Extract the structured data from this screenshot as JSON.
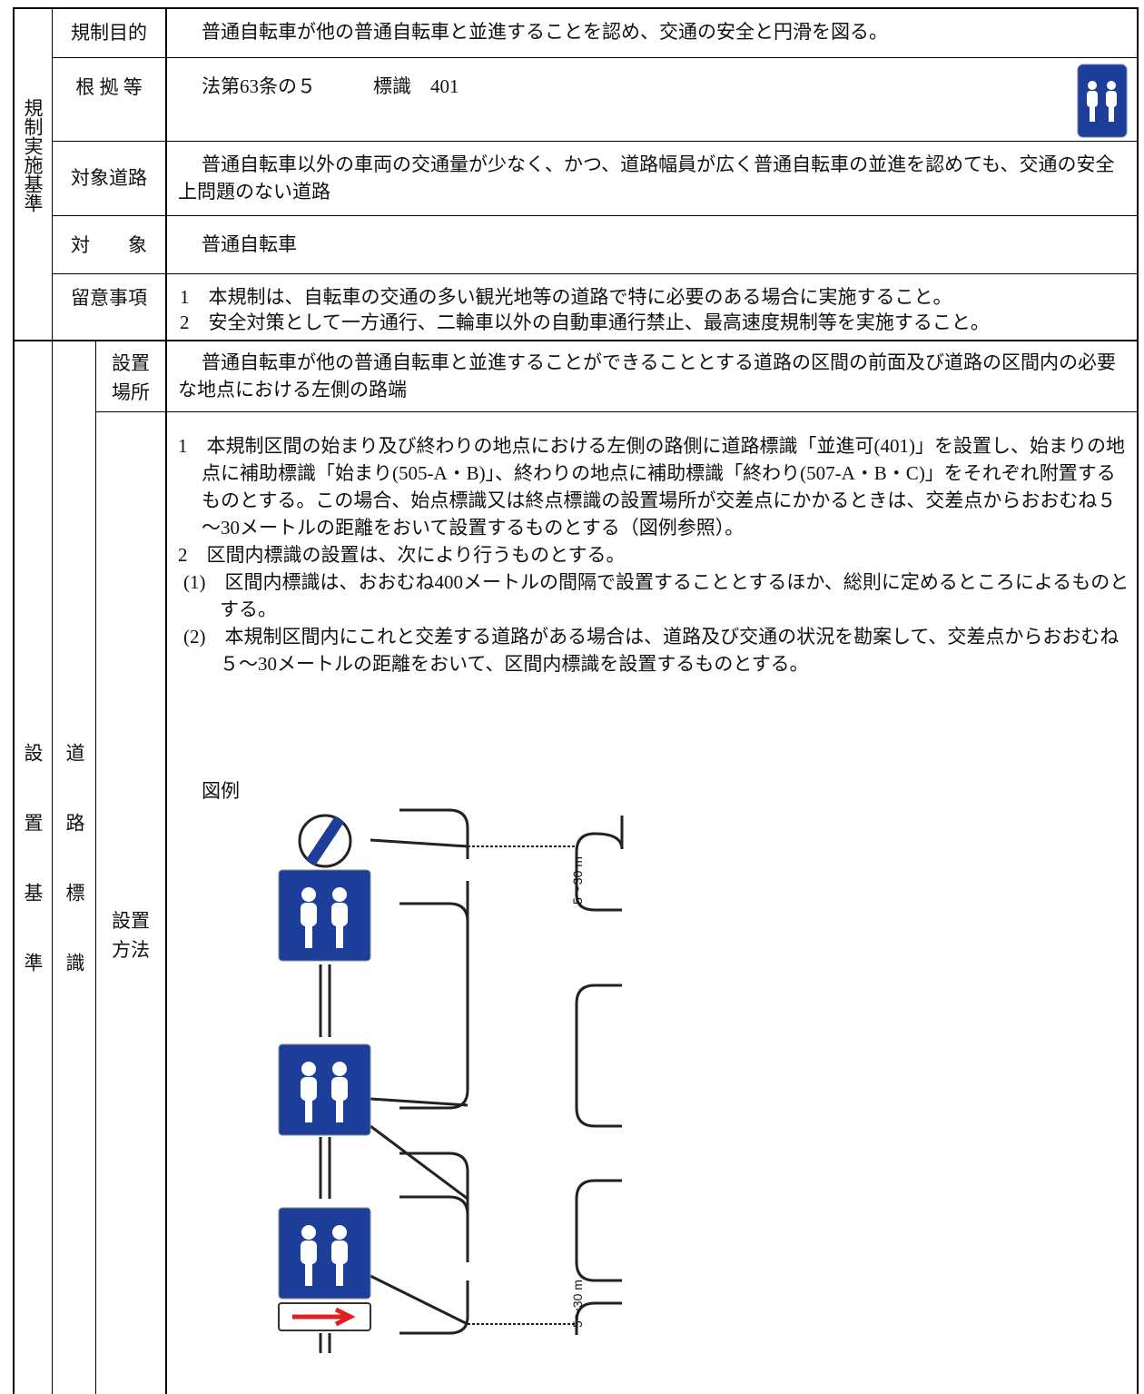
{
  "regulation_section": {
    "label": "規制実施基準",
    "rows": [
      {
        "label": "規制目的",
        "content": "普通自転車が他の普通自転車と並進することを認め、交通の安全と円滑を図る。"
      },
      {
        "label": "根 拠 等",
        "content": "法第63条の５　　　標識　401"
      },
      {
        "label": "対象道路",
        "content": "普通自転車以外の車両の交通量が少なく、かつ、道路幅員が広く普通自転車の並進を認めても、交通の安全上問題のない道路"
      },
      {
        "label": "対　　象",
        "content": "普通自転車"
      },
      {
        "label": "留意事項",
        "items": [
          "1　本規制は、自転車の交通の多い観光地等の道路で特に必要のある場合に実施すること。",
          "2　安全対策として一方通行、二輪車以外の自動車通行禁止、最高速度規制等を実施すること。"
        ]
      }
    ]
  },
  "installation_section": {
    "label": "設置基準",
    "sub_label": "道路標識",
    "rows": [
      {
        "label": "設置場所",
        "content": "普通自転車が他の普通自転車と並進することができることとする道路の区間の前面及び道路の区間内の必要な地点における左側の路端"
      },
      {
        "label": "設置方法",
        "paragraphs": [
          "1　本規制区間の始まり及び終わりの地点における左側の路側に道路標識「並進可(401)」を設置し、始まりの地点に補助標識「始まり(505-A・B)」、終わりの地点に補助標識「終わり(507-A・B・C)」をそれぞれ附置するものとする。この場合、始点標識又は終点標識の設置場所が交差点にかかるときは、交差点からおおむね５～30メートルの距離をおいて設置するものとする（図例参照）。",
          "2　区間内標識の設置は、次により行うものとする。",
          "(1)　区間内標識は、おおむね400メートルの間隔で設置することとするほか、総則に定めるところによるものとする。",
          "(2)　本規制区間内にこれと交差する道路がある場合は、道路及び交通の状況を勘案して、交差点からおおむね５～30メートルの距離をおいて、区間内標識を設置するものとする。"
        ],
        "figure_caption": "図例",
        "figure_labels": [
          "5～30 m",
          "5～30 m"
        ]
      }
    ]
  }
}
